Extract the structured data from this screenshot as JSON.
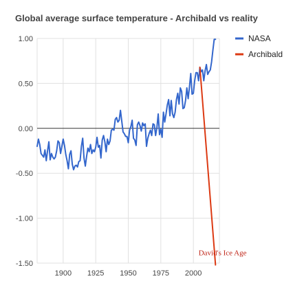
{
  "chart_data": {
    "type": "line",
    "title": "Global average surface temperature - Archibald vs reality",
    "xlabel": "",
    "ylabel": "",
    "xlim": [
      1880,
      2020
    ],
    "ylim": [
      -1.5,
      1.0
    ],
    "x_ticks": [
      1900,
      1925,
      1950,
      1975,
      2000
    ],
    "y_ticks": [
      1.0,
      0.5,
      0.0,
      -0.5,
      -1.0,
      -1.5
    ],
    "y_tick_labels": [
      "1.00",
      "0.50",
      "0.00",
      "-0.50",
      "-1.00",
      "-1.50"
    ],
    "grid": true,
    "legend_position": "right",
    "series": [
      {
        "name": "NASA",
        "color": "#3366cc",
        "x": [
          1880,
          1881,
          1882,
          1883,
          1884,
          1885,
          1886,
          1887,
          1888,
          1889,
          1890,
          1891,
          1892,
          1893,
          1894,
          1895,
          1896,
          1897,
          1898,
          1899,
          1900,
          1901,
          1902,
          1903,
          1904,
          1905,
          1906,
          1907,
          1908,
          1909,
          1910,
          1911,
          1912,
          1913,
          1914,
          1915,
          1916,
          1917,
          1918,
          1919,
          1920,
          1921,
          1922,
          1923,
          1924,
          1925,
          1926,
          1927,
          1928,
          1929,
          1930,
          1931,
          1932,
          1933,
          1934,
          1935,
          1936,
          1937,
          1938,
          1939,
          1940,
          1941,
          1942,
          1943,
          1944,
          1945,
          1946,
          1947,
          1948,
          1949,
          1950,
          1951,
          1952,
          1953,
          1954,
          1955,
          1956,
          1957,
          1958,
          1959,
          1960,
          1961,
          1962,
          1963,
          1964,
          1965,
          1966,
          1967,
          1968,
          1969,
          1970,
          1971,
          1972,
          1973,
          1974,
          1975,
          1976,
          1977,
          1978,
          1979,
          1980,
          1981,
          1982,
          1983,
          1984,
          1985,
          1986,
          1987,
          1988,
          1989,
          1990,
          1991,
          1992,
          1993,
          1994,
          1995,
          1996,
          1997,
          1998,
          1999,
          2000,
          2001,
          2002,
          2003,
          2004,
          2005,
          2006,
          2007,
          2008,
          2009,
          2010,
          2011,
          2012,
          2013,
          2014,
          2015,
          2016,
          2017
        ],
        "y": [
          -0.2,
          -0.12,
          -0.18,
          -0.28,
          -0.3,
          -0.32,
          -0.24,
          -0.36,
          -0.25,
          -0.15,
          -0.35,
          -0.28,
          -0.32,
          -0.34,
          -0.32,
          -0.25,
          -0.14,
          -0.16,
          -0.28,
          -0.2,
          -0.12,
          -0.19,
          -0.29,
          -0.36,
          -0.45,
          -0.29,
          -0.25,
          -0.4,
          -0.46,
          -0.42,
          -0.41,
          -0.43,
          -0.37,
          -0.36,
          -0.2,
          -0.11,
          -0.33,
          -0.42,
          -0.31,
          -0.22,
          -0.26,
          -0.18,
          -0.28,
          -0.24,
          -0.26,
          -0.21,
          -0.1,
          -0.21,
          -0.19,
          -0.33,
          -0.13,
          -0.08,
          -0.15,
          -0.26,
          -0.12,
          -0.18,
          -0.14,
          -0.02,
          -0.01,
          -0.02,
          0.1,
          0.12,
          0.07,
          0.09,
          0.2,
          0.08,
          -0.04,
          -0.06,
          -0.09,
          -0.09,
          -0.16,
          -0.02,
          0.02,
          0.09,
          -0.11,
          -0.13,
          -0.19,
          0.04,
          0.07,
          0.03,
          -0.03,
          0.06,
          0.03,
          0.05,
          -0.2,
          -0.11,
          -0.06,
          -0.02,
          -0.08,
          0.05,
          0.04,
          -0.08,
          0.01,
          0.16,
          -0.07,
          -0.01,
          -0.1,
          0.18,
          0.07,
          0.16,
          0.26,
          0.32,
          0.14,
          0.31,
          0.16,
          0.12,
          0.18,
          0.32,
          0.39,
          0.27,
          0.45,
          0.41,
          0.22,
          0.23,
          0.31,
          0.45,
          0.33,
          0.46,
          0.61,
          0.38,
          0.39,
          0.53,
          0.62,
          0.62,
          0.53,
          0.68,
          0.63,
          0.65,
          0.53,
          0.64,
          0.71,
          0.6,
          0.63,
          0.65,
          0.74,
          0.87,
          0.99,
          0.99
        ]
      },
      {
        "name": "Archibald",
        "color": "#dc3912",
        "x": [
          2005,
          2017
        ],
        "y": [
          0.68,
          -1.52
        ]
      }
    ],
    "annotations": [
      {
        "text": "David's Ice Age",
        "x": 2004,
        "y": -1.38
      }
    ]
  }
}
